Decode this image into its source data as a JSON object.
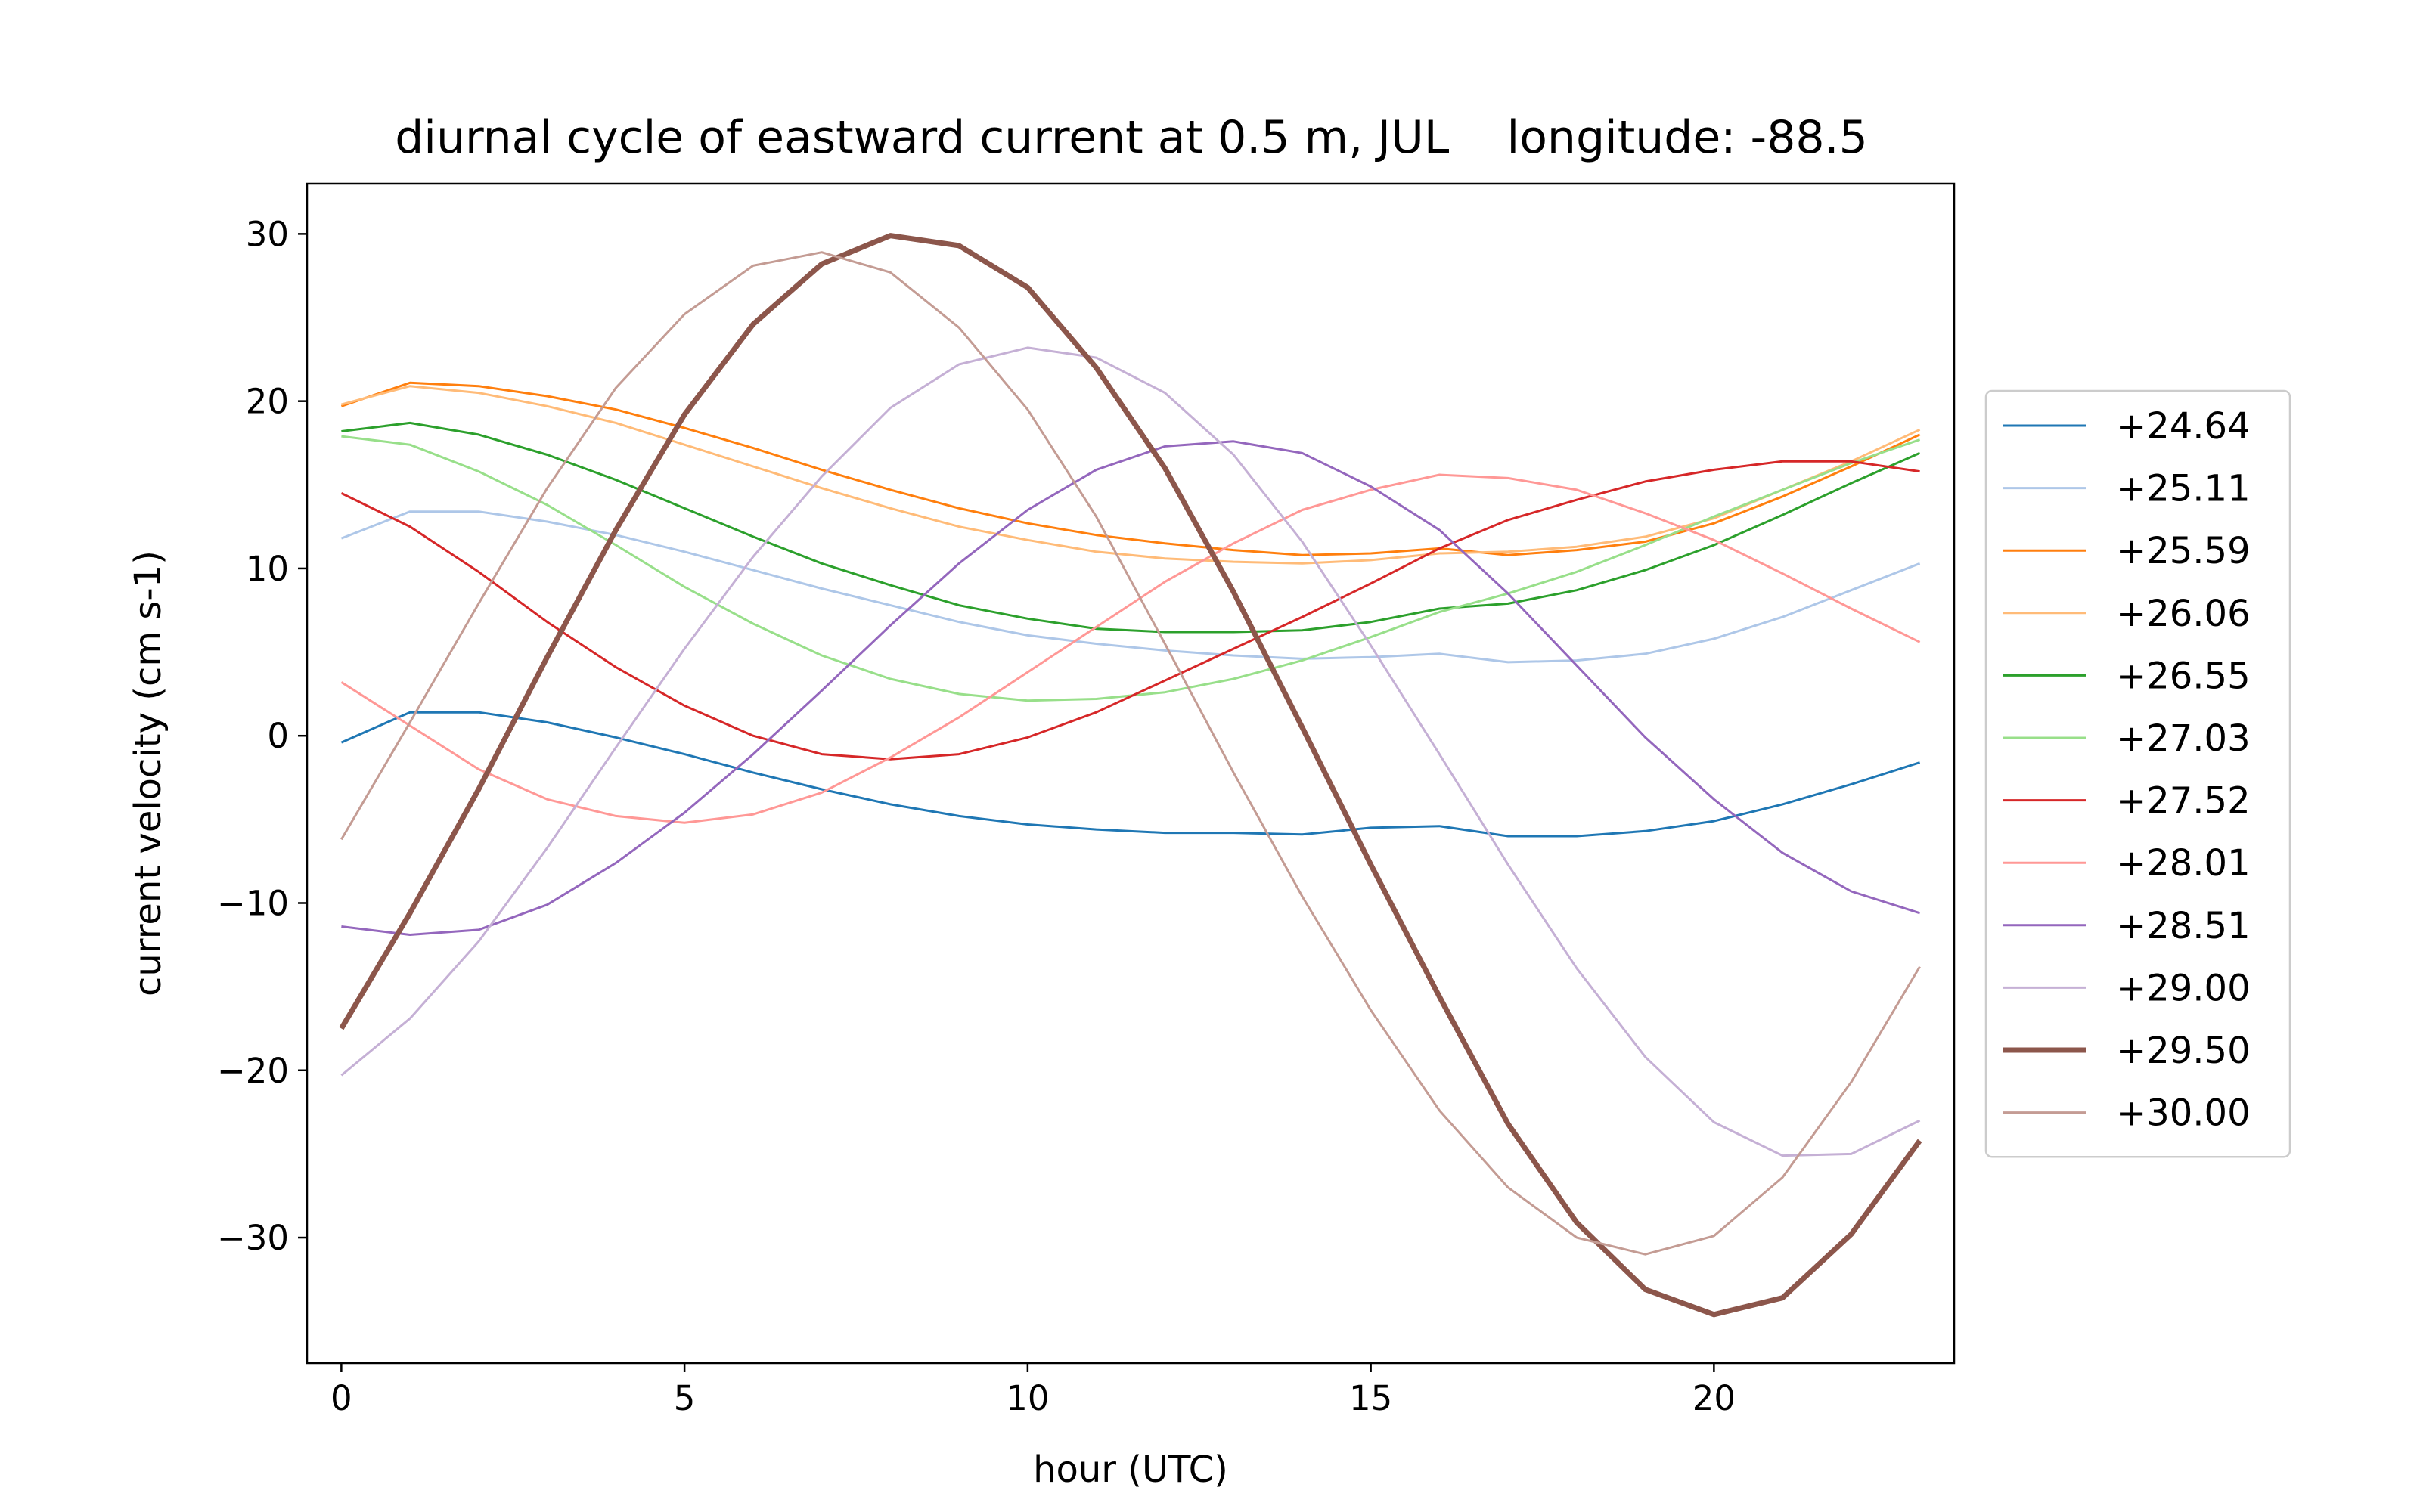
{
  "chart_data": {
    "type": "line",
    "title": "diurnal cycle of eastward current at 0.5 m, JUL    longitude: -88.5",
    "xlabel": "hour (UTC)",
    "ylabel": "current velocity (cm s-1)",
    "xlim": [
      -0.5,
      23.5
    ],
    "ylim": [
      -37.5,
      33
    ],
    "xticks": [
      0,
      5,
      10,
      15,
      20
    ],
    "yticks": [
      -30,
      -20,
      -10,
      0,
      10,
      20,
      30
    ],
    "xtick_labels": [
      "0",
      "5",
      "10",
      "15",
      "20"
    ],
    "ytick_labels": [
      "−30",
      "−20",
      "−10",
      "0",
      "10",
      "20",
      "30"
    ],
    "grid": false,
    "legend_position": "right, outside plot",
    "x": [
      0,
      1,
      2,
      3,
      4,
      5,
      6,
      7,
      8,
      9,
      10,
      11,
      12,
      13,
      14,
      15,
      16,
      17,
      18,
      19,
      20,
      21,
      22,
      23
    ],
    "series": [
      {
        "name": "+24.64",
        "color": "#1f77b4",
        "bold": false,
        "values": [
          -0.4,
          1.4,
          1.4,
          0.8,
          -0.1,
          -1.1,
          -2.2,
          -3.2,
          -4.1,
          -4.8,
          -5.3,
          -5.6,
          -5.8,
          -5.8,
          -5.9,
          -5.5,
          -5.4,
          -6.0,
          -6.0,
          -5.7,
          -5.1,
          -4.1,
          -2.9,
          -1.6
        ]
      },
      {
        "name": "+25.11",
        "color": "#aec7e8",
        "bold": false,
        "values": [
          11.8,
          13.4,
          13.4,
          12.8,
          12.0,
          11.0,
          9.9,
          8.8,
          7.8,
          6.8,
          6.0,
          5.5,
          5.1,
          4.8,
          4.6,
          4.7,
          4.9,
          4.4,
          4.5,
          4.9,
          5.8,
          7.1,
          8.7,
          10.3
        ]
      },
      {
        "name": "+25.59",
        "color": "#ff7f0e",
        "bold": false,
        "values": [
          19.7,
          21.1,
          20.9,
          20.3,
          19.5,
          18.4,
          17.2,
          15.9,
          14.7,
          13.6,
          12.7,
          12.0,
          11.5,
          11.1,
          10.8,
          10.9,
          11.2,
          10.8,
          11.1,
          11.6,
          12.7,
          14.3,
          16.1,
          18.0
        ]
      },
      {
        "name": "+26.06",
        "color": "#ffbb78",
        "bold": false,
        "values": [
          19.8,
          20.9,
          20.5,
          19.7,
          18.7,
          17.4,
          16.1,
          14.8,
          13.6,
          12.5,
          11.7,
          11.0,
          10.6,
          10.4,
          10.3,
          10.5,
          10.9,
          11.0,
          11.3,
          11.9,
          13.0,
          14.7,
          16.4,
          18.3
        ]
      },
      {
        "name": "+26.55",
        "color": "#2ca02c",
        "bold": false,
        "values": [
          18.2,
          18.7,
          18.0,
          16.8,
          15.3,
          13.6,
          11.9,
          10.3,
          9.0,
          7.8,
          7.0,
          6.4,
          6.2,
          6.2,
          6.3,
          6.8,
          7.6,
          7.9,
          8.7,
          9.9,
          11.4,
          13.2,
          15.1,
          16.9
        ]
      },
      {
        "name": "+27.03",
        "color": "#98df8a",
        "bold": false,
        "values": [
          17.9,
          17.4,
          15.8,
          13.8,
          11.4,
          8.9,
          6.7,
          4.8,
          3.4,
          2.5,
          2.1,
          2.2,
          2.6,
          3.4,
          4.5,
          5.9,
          7.4,
          8.5,
          9.8,
          11.4,
          13.1,
          14.7,
          16.3,
          17.7
        ]
      },
      {
        "name": "+27.52",
        "color": "#d62728",
        "bold": false,
        "values": [
          14.5,
          12.5,
          9.8,
          6.8,
          4.1,
          1.8,
          0.0,
          -1.1,
          -1.4,
          -1.1,
          -0.1,
          1.4,
          3.3,
          5.2,
          7.1,
          9.1,
          11.2,
          12.9,
          14.1,
          15.2,
          15.9,
          16.4,
          16.4,
          15.8
        ]
      },
      {
        "name": "+28.01",
        "color": "#ff9896",
        "bold": false,
        "values": [
          3.2,
          0.6,
          -2.0,
          -3.8,
          -4.8,
          -5.2,
          -4.7,
          -3.4,
          -1.3,
          1.1,
          3.8,
          6.5,
          9.2,
          11.5,
          13.5,
          14.7,
          15.6,
          15.4,
          14.7,
          13.3,
          11.7,
          9.7,
          7.6,
          5.6
        ]
      },
      {
        "name": "+28.51",
        "color": "#9467bd",
        "bold": false,
        "values": [
          -11.4,
          -11.9,
          -11.6,
          -10.1,
          -7.6,
          -4.6,
          -1.1,
          2.7,
          6.6,
          10.3,
          13.5,
          15.9,
          17.3,
          17.6,
          16.9,
          14.9,
          12.3,
          8.5,
          4.2,
          -0.1,
          -3.8,
          -7.0,
          -9.3,
          -10.6
        ]
      },
      {
        "name": "+29.00",
        "color": "#c5b0d5",
        "bold": false,
        "values": [
          -20.3,
          -16.9,
          -12.3,
          -6.7,
          -0.7,
          5.2,
          10.7,
          15.5,
          19.6,
          22.2,
          23.2,
          22.6,
          20.5,
          16.8,
          11.6,
          5.4,
          -1.1,
          -7.7,
          -13.9,
          -19.2,
          -23.1,
          -25.1,
          -25.0,
          -23.0
        ]
      },
      {
        "name": "+29.50",
        "color": "#8c564b",
        "bold": true,
        "values": [
          -17.5,
          -10.6,
          -3.2,
          4.7,
          12.3,
          19.2,
          24.6,
          28.2,
          29.9,
          29.3,
          26.8,
          22.0,
          16.0,
          8.6,
          0.5,
          -7.7,
          -15.6,
          -23.2,
          -29.1,
          -33.1,
          -34.6,
          -33.6,
          -29.8,
          -24.2
        ]
      },
      {
        "name": "+30.00",
        "color": "#c49c94",
        "bold": false,
        "values": [
          -6.2,
          0.8,
          7.9,
          14.8,
          20.8,
          25.2,
          28.1,
          28.9,
          27.7,
          24.4,
          19.5,
          13.1,
          5.5,
          -2.2,
          -9.6,
          -16.4,
          -22.4,
          -27.0,
          -30.0,
          -31.0,
          -29.9,
          -26.4,
          -20.7,
          -13.8
        ]
      }
    ]
  }
}
